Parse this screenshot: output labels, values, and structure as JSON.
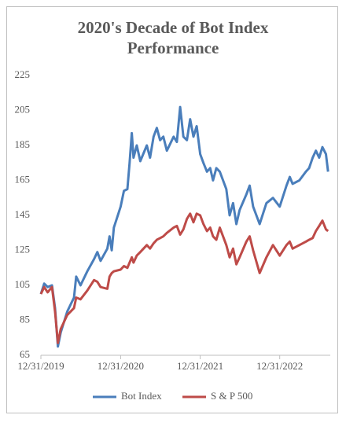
{
  "chart_data": {
    "type": "line",
    "title": "2020's Decade of Bot Index Performance",
    "x": [
      "2019-12-31",
      "2020-01-15",
      "2020-01-31",
      "2020-02-20",
      "2020-03-05",
      "2020-03-18",
      "2020-03-31",
      "2020-04-30",
      "2020-05-31",
      "2020-06-10",
      "2020-06-30",
      "2020-07-31",
      "2020-08-31",
      "2020-09-15",
      "2020-09-30",
      "2020-10-31",
      "2020-11-10",
      "2020-11-20",
      "2020-11-30",
      "2020-12-31",
      "2021-01-15",
      "2021-01-31",
      "2021-02-10",
      "2021-02-20",
      "2021-02-28",
      "2021-03-15",
      "2021-03-31",
      "2021-04-30",
      "2021-05-15",
      "2021-05-31",
      "2021-06-15",
      "2021-06-30",
      "2021-07-15",
      "2021-07-31",
      "2021-08-31",
      "2021-09-15",
      "2021-09-30",
      "2021-10-15",
      "2021-10-31",
      "2021-11-15",
      "2021-11-30",
      "2021-12-15",
      "2021-12-31",
      "2022-01-15",
      "2022-01-31",
      "2022-02-15",
      "2022-02-28",
      "2022-03-15",
      "2022-03-31",
      "2022-04-30",
      "2022-05-15",
      "2022-05-31",
      "2022-06-15",
      "2022-06-30",
      "2022-07-31",
      "2022-08-15",
      "2022-08-31",
      "2022-09-30",
      "2022-10-31",
      "2022-11-30",
      "2022-12-31",
      "2023-01-31",
      "2023-02-15",
      "2023-02-28",
      "2023-03-31",
      "2023-04-30",
      "2023-05-15",
      "2023-05-31",
      "2023-06-15",
      "2023-06-30",
      "2023-07-15",
      "2023-07-31",
      "2023-08-10"
    ],
    "series": [
      {
        "name": "Bot Index",
        "color": "#4a7ebb",
        "values": [
          100,
          106,
          104,
          105,
          92,
          70,
          78,
          90,
          98,
          110,
          105,
          113,
          120,
          124,
          119,
          126,
          133,
          125,
          138,
          150,
          159,
          160,
          175,
          192,
          178,
          185,
          176,
          185,
          178,
          190,
          195,
          188,
          190,
          182,
          190,
          187,
          207,
          190,
          188,
          200,
          190,
          196,
          180,
          175,
          170,
          172,
          165,
          172,
          170,
          160,
          145,
          152,
          140,
          148,
          157,
          162,
          150,
          140,
          152,
          155,
          150,
          162,
          167,
          163,
          165,
          170,
          172,
          178,
          182,
          178,
          184,
          180,
          170
        ]
      },
      {
        "name": "S & P 500",
        "color": "#be4b48",
        "values": [
          100,
          104,
          101,
          104,
          90,
          72,
          80,
          88,
          92,
          98,
          97,
          102,
          108,
          107,
          104,
          103,
          110,
          112,
          113,
          114,
          116,
          115,
          118,
          121,
          118,
          122,
          124,
          128,
          126,
          129,
          131,
          132,
          133,
          135,
          138,
          139,
          134,
          137,
          143,
          146,
          141,
          146,
          145,
          140,
          136,
          138,
          133,
          131,
          138,
          128,
          121,
          126,
          117,
          121,
          130,
          133,
          125,
          112,
          121,
          128,
          122,
          128,
          130,
          126,
          128,
          130,
          131,
          132,
          136,
          139,
          142,
          137,
          136
        ]
      }
    ],
    "xlim": [
      "2019-12-31",
      "2023-08-20"
    ],
    "xticks": [
      {
        "value": "2019-12-31",
        "label": "12/31/2019"
      },
      {
        "value": "2020-12-31",
        "label": "12/31/2020"
      },
      {
        "value": "2021-12-31",
        "label": "12/31/2021"
      },
      {
        "value": "2022-12-31",
        "label": "12/31/2022"
      }
    ],
    "ylim": [
      65,
      225
    ],
    "yticks": [
      65,
      85,
      105,
      125,
      145,
      165,
      185,
      205,
      225
    ],
    "legend": "bottom"
  }
}
